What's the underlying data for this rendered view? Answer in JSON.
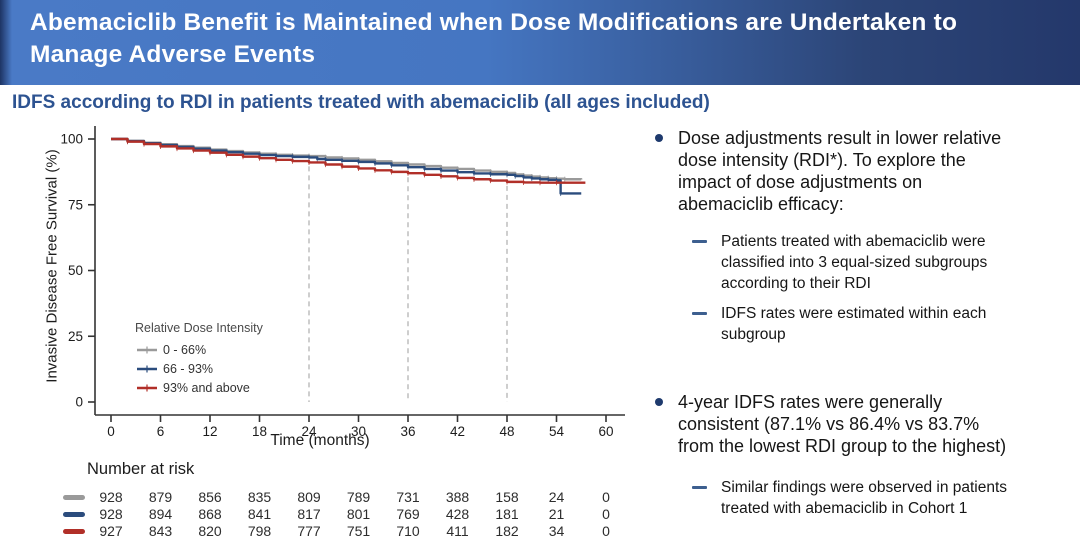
{
  "header": {
    "title": "Abemaciclib Benefit is Maintained when Dose Modifications are Undertaken to\nManage Adverse Events"
  },
  "subtitle": "IDFS according to RDI in patients treated with abemaciclib (all ages included)",
  "colors": {
    "header_gradient_left": "#4a7ac6",
    "header_gradient_right": "#24386b",
    "subtitle_blue": "#2d5391",
    "bullet_dot_navy": "#1e3a6d",
    "sub_dash_blue": "#3d5f8f",
    "series_gray": "#9a9a9a",
    "series_blue": "#2b4c7d",
    "series_red": "#b12f28",
    "dashed_gridline": "#c2c2c2",
    "axis": "#333333"
  },
  "chart_data": {
    "type": "line",
    "subtype": "kaplan-meier-step",
    "title": "",
    "xlabel": "Time (months)",
    "ylabel": "Invasive Disease Free Survival (%)",
    "xlim": [
      0,
      60
    ],
    "ylim": [
      0,
      100
    ],
    "xticks": [
      0,
      6,
      12,
      18,
      24,
      30,
      36,
      42,
      48,
      54,
      60
    ],
    "yticks": [
      0,
      25,
      50,
      75,
      100
    ],
    "grid": false,
    "dashed_vlines_months": [
      24,
      36,
      48
    ],
    "legend": {
      "title": "Relative Dose Intensity",
      "position": "inside-bottom-left",
      "entries": [
        "0 - 66%",
        "66 - 93%",
        "93% and above"
      ]
    },
    "series": [
      {
        "name": "0 - 66%",
        "color": "#9a9a9a",
        "points": [
          [
            0,
            100
          ],
          [
            2,
            99.3
          ],
          [
            4,
            98.6
          ],
          [
            6,
            98
          ],
          [
            8,
            97.3
          ],
          [
            10,
            96.7
          ],
          [
            12,
            96
          ],
          [
            14,
            95.4
          ],
          [
            16,
            94.9
          ],
          [
            18,
            94.4
          ],
          [
            20,
            94
          ],
          [
            22,
            93.7
          ],
          [
            24,
            93.5
          ],
          [
            26,
            93
          ],
          [
            28,
            92.6
          ],
          [
            30,
            92.1
          ],
          [
            32,
            91.5
          ],
          [
            34,
            90.9
          ],
          [
            36,
            90.3
          ],
          [
            38,
            89.7
          ],
          [
            40,
            89.1
          ],
          [
            42,
            88.6
          ],
          [
            44,
            88
          ],
          [
            46,
            87.5
          ],
          [
            48,
            87.1
          ],
          [
            49,
            86.5
          ],
          [
            50,
            86.1
          ],
          [
            51,
            85.7
          ],
          [
            52,
            85.4
          ],
          [
            53,
            85.1
          ],
          [
            54,
            84.9
          ],
          [
            55,
            84.7
          ],
          [
            57,
            84.6
          ]
        ]
      },
      {
        "name": "66 - 93%",
        "color": "#2b4c7d",
        "points": [
          [
            0,
            100
          ],
          [
            2,
            99.2
          ],
          [
            4,
            98.4
          ],
          [
            6,
            97.7
          ],
          [
            8,
            97
          ],
          [
            10,
            96.3
          ],
          [
            12,
            95.6
          ],
          [
            14,
            95
          ],
          [
            16,
            94.4
          ],
          [
            18,
            93.9
          ],
          [
            20,
            93.5
          ],
          [
            22,
            93.2
          ],
          [
            24,
            93
          ],
          [
            25,
            92.4
          ],
          [
            26,
            92.1
          ],
          [
            28,
            91.7
          ],
          [
            30,
            91.3
          ],
          [
            32,
            90.7
          ],
          [
            34,
            90
          ],
          [
            36,
            89.3
          ],
          [
            38,
            88.6
          ],
          [
            40,
            88
          ],
          [
            42,
            87.4
          ],
          [
            44,
            86.9
          ],
          [
            46,
            86.6
          ],
          [
            48,
            86.4
          ],
          [
            49,
            85.9
          ],
          [
            50,
            85.4
          ],
          [
            51,
            85
          ],
          [
            52,
            84.7
          ],
          [
            53,
            84.5
          ],
          [
            54,
            84.3
          ],
          [
            54.5,
            79.3
          ],
          [
            57,
            79.3
          ]
        ]
      },
      {
        "name": "93% and above",
        "color": "#b12f28",
        "points": [
          [
            0,
            100
          ],
          [
            2,
            99
          ],
          [
            4,
            98.1
          ],
          [
            6,
            97.2
          ],
          [
            8,
            96.4
          ],
          [
            10,
            95.6
          ],
          [
            12,
            94.8
          ],
          [
            14,
            94
          ],
          [
            16,
            93.3
          ],
          [
            18,
            92.7
          ],
          [
            20,
            92.1
          ],
          [
            22,
            91.6
          ],
          [
            24,
            91.1
          ],
          [
            26,
            90.3
          ],
          [
            28,
            89.5
          ],
          [
            30,
            88.8
          ],
          [
            32,
            88.1
          ],
          [
            34,
            87.5
          ],
          [
            36,
            87
          ],
          [
            38,
            86.4
          ],
          [
            40,
            85.8
          ],
          [
            42,
            85.2
          ],
          [
            44,
            84.7
          ],
          [
            46,
            84.2
          ],
          [
            48,
            83.7
          ],
          [
            50,
            83.5
          ],
          [
            52,
            83.4
          ],
          [
            54,
            83.4
          ],
          [
            57.5,
            83.4
          ]
        ]
      }
    ],
    "risk_table": {
      "label": "Number at risk",
      "time_points": [
        0,
        6,
        12,
        18,
        24,
        30,
        36,
        42,
        48,
        54,
        60
      ],
      "rows": [
        {
          "name": "0 - 66%",
          "color": "#9a9a9a",
          "values": [
            928,
            879,
            856,
            835,
            809,
            789,
            731,
            388,
            158,
            24,
            0
          ]
        },
        {
          "name": "66 - 93%",
          "color": "#2b4c7d",
          "values": [
            928,
            894,
            868,
            841,
            817,
            801,
            769,
            428,
            181,
            21,
            0
          ]
        },
        {
          "name": "93% and above",
          "color": "#b12f28",
          "values": [
            927,
            843,
            820,
            798,
            777,
            751,
            710,
            411,
            182,
            34,
            0
          ]
        }
      ]
    }
  },
  "right_panel": {
    "bullets": [
      {
        "text": "Dose adjustments result in lower relative\ndose intensity (RDI*). To explore the\nimpact of dose adjustments on\nabemaciclib efficacy:",
        "sub": [
          "Patients treated with abemaciclib were\nclassified into 3 equal-sized subgroups\naccording to their RDI",
          "IDFS rates were estimated within each\nsubgroup"
        ]
      },
      {
        "text": "4-year IDFS rates were generally\nconsistent (87.1% vs 86.4% vs 83.7%\nfrom the lowest RDI group to the highest)",
        "sub": [
          "Similar findings were observed in patients\ntreated with abemaciclib in Cohort 1"
        ]
      }
    ]
  }
}
